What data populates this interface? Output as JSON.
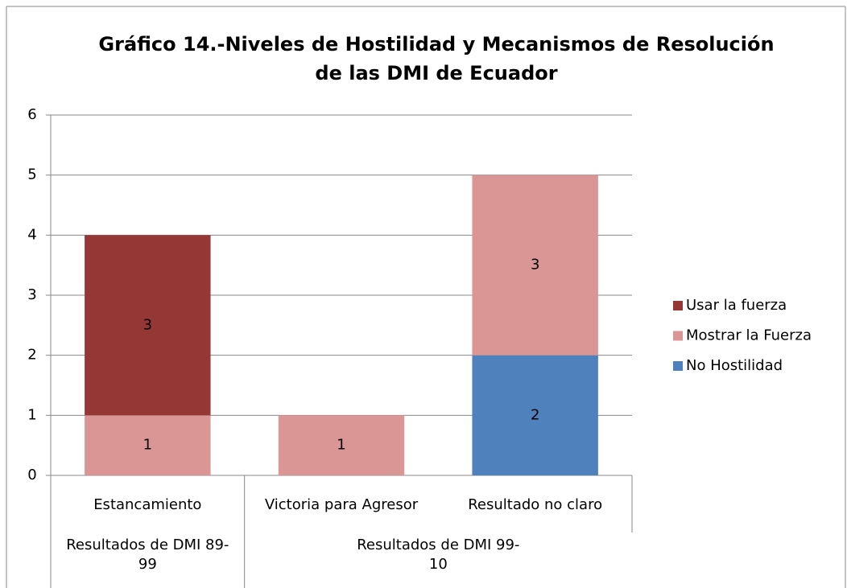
{
  "chart_data": {
    "type": "stacked_bar",
    "title": [
      "Gráfico 14.-Niveles de Hostilidad y Mecanismos de Resolución",
      "de las DMI de Ecuador"
    ],
    "categories": [
      "Estancamiento",
      "Victoria para Agresor",
      "Resultado no claro"
    ],
    "groups": [
      {
        "label": "Resultados de DMI 89-99",
        "span": [
          0,
          0
        ]
      },
      {
        "label": "Resultados de DMI 99-10",
        "span": [
          1,
          2
        ]
      }
    ],
    "series": [
      {
        "name": "No Hostilidad",
        "color": "#4f81bd",
        "values": [
          null,
          null,
          2
        ]
      },
      {
        "name": "Mostrar la Fuerza",
        "color": "#d99694",
        "values": [
          1,
          1,
          3
        ]
      },
      {
        "name": "Usar la fuerza",
        "color": "#953735",
        "values": [
          3,
          null,
          null
        ]
      }
    ],
    "ylim": [
      0,
      6
    ],
    "yticks": [
      0,
      1,
      2,
      3,
      4,
      5,
      6
    ],
    "grid": true,
    "legend": "right"
  }
}
